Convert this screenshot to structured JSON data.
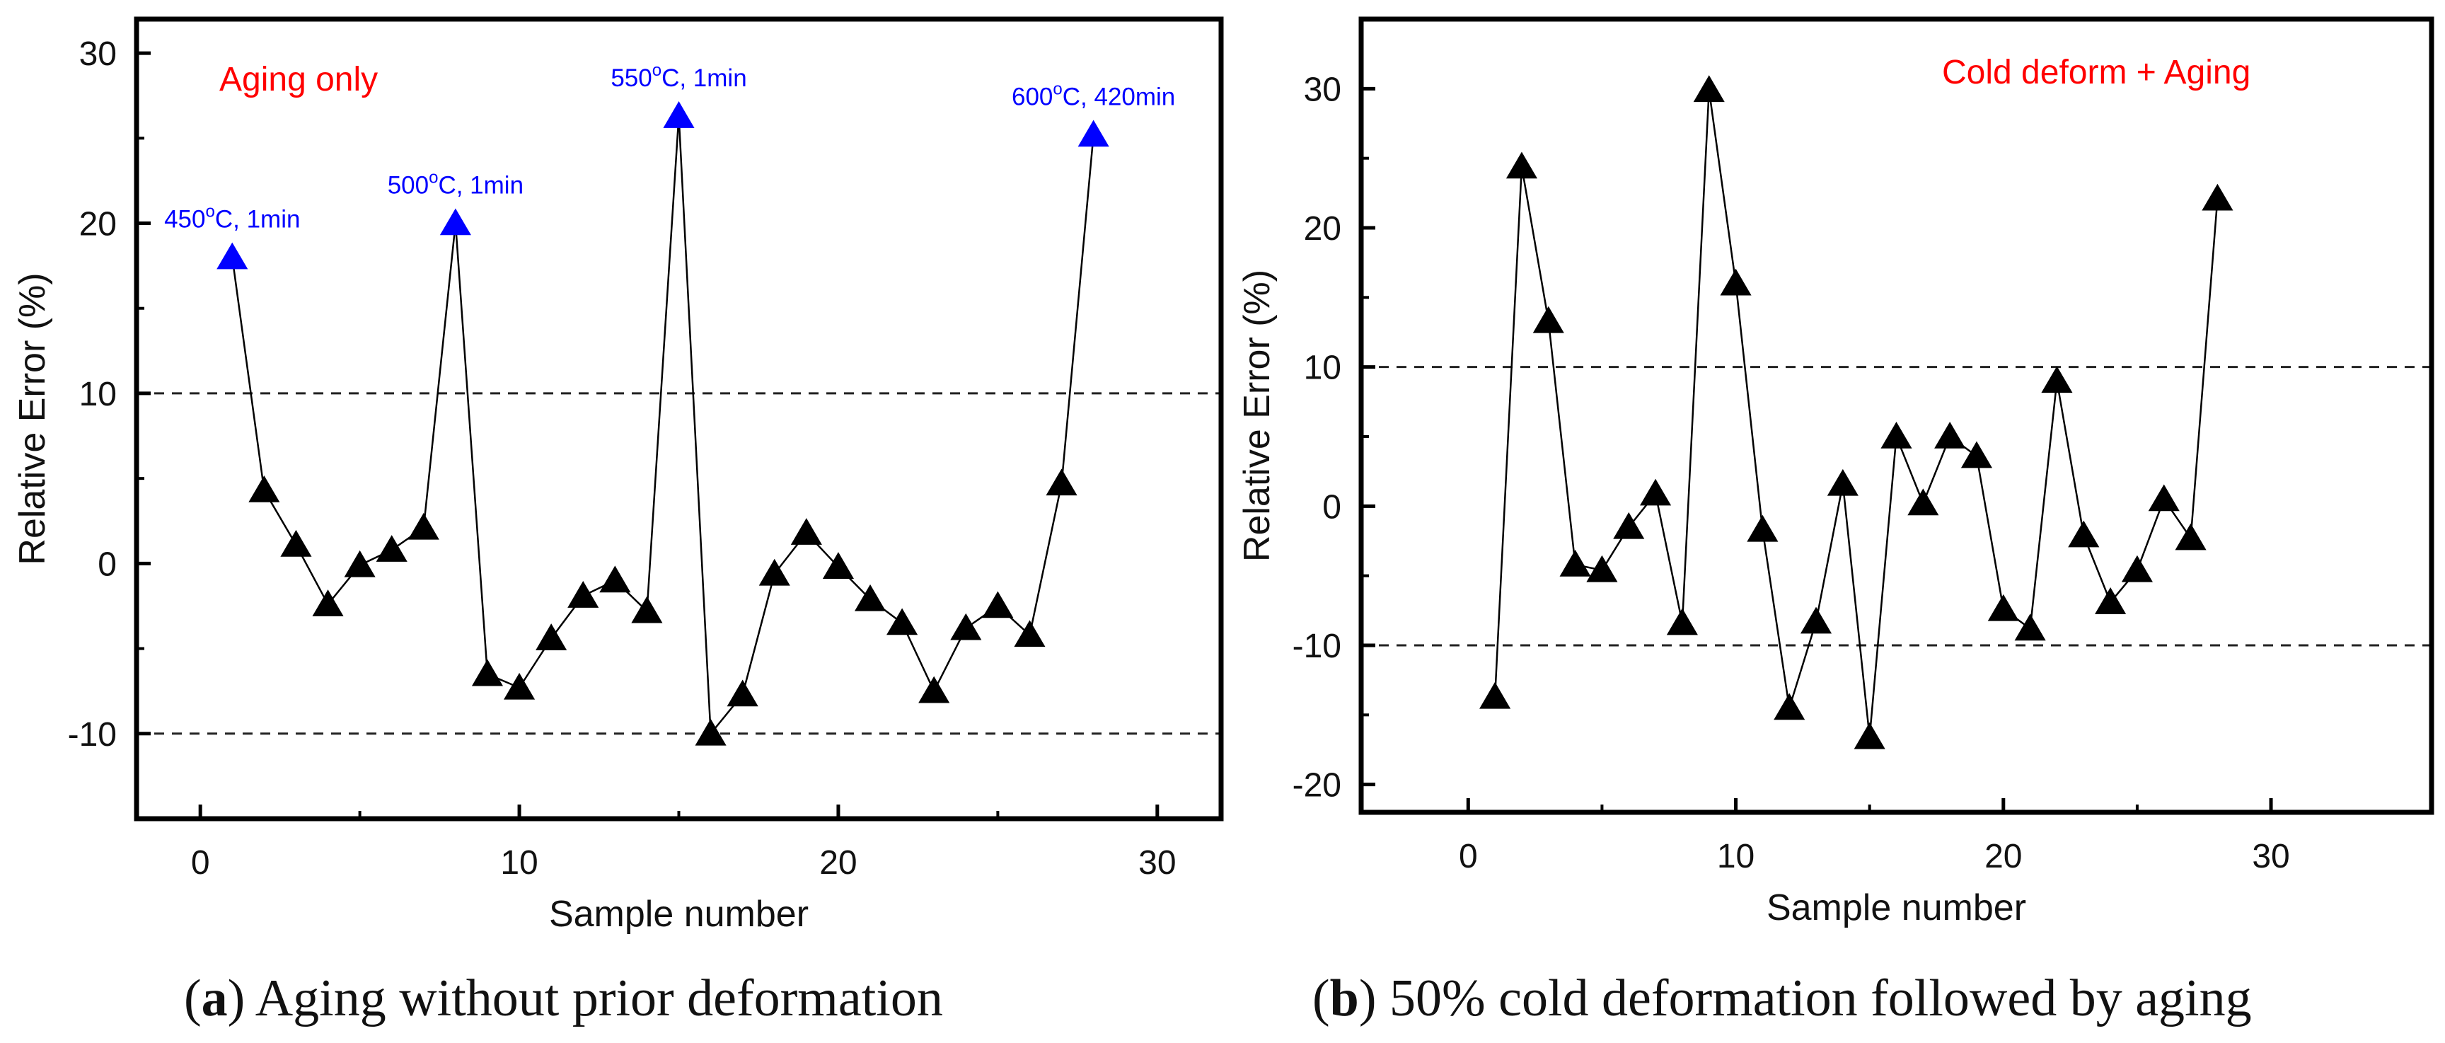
{
  "colors": {
    "highlight": "#0000ff",
    "label_red": "#ff0000",
    "marker": "#000000"
  },
  "chart_data": [
    {
      "type": "scatter",
      "xlabel": "Sample number",
      "ylabel": "Relative Error (%)",
      "xlim": [
        -2,
        32
      ],
      "ylim": [
        -15,
        32
      ],
      "xticks": [
        "0",
        "10",
        "20",
        "30"
      ],
      "yticks": [
        "-10",
        "0",
        "10",
        "20",
        "30"
      ],
      "ref_lines": [
        10,
        -10
      ],
      "inset_label": "Aging only",
      "caption": {
        "letter": "a",
        "text": ") Aging without prior deformation"
      },
      "x": [
        1,
        2,
        3,
        4,
        5,
        6,
        7,
        8,
        9,
        10,
        11,
        12,
        13,
        14,
        15,
        16,
        17,
        18,
        19,
        20,
        21,
        22,
        23,
        24,
        25,
        26,
        27,
        28
      ],
      "y": [
        18,
        4.3,
        1.1,
        -2.4,
        -0.1,
        0.8,
        2.1,
        20,
        -6.5,
        -7.3,
        -4.4,
        -1.9,
        -1,
        -2.8,
        26.3,
        -10,
        -7.7,
        -0.6,
        1.8,
        -0.2,
        -2.1,
        -3.5,
        -7.5,
        -3.8,
        -2.5,
        -4.2,
        4.7,
        25.2
      ],
      "annotations": [
        {
          "index": 0,
          "base": "450",
          "sup": "o",
          "rest": "C, 1min"
        },
        {
          "index": 7,
          "base": "500",
          "sup": "o",
          "rest": "C, 1min"
        },
        {
          "index": 14,
          "base": "550",
          "sup": "o",
          "rest": "C, 1min"
        },
        {
          "index": 27,
          "base": "600",
          "sup": "o",
          "rest": "C, 420min"
        }
      ]
    },
    {
      "type": "scatter",
      "xlabel": "Sample number",
      "ylabel": "Relative Error (%)",
      "xlim": [
        -4,
        36
      ],
      "ylim": [
        -22,
        35
      ],
      "xticks": [
        "0",
        "10",
        "20",
        "30"
      ],
      "yticks": [
        "-20",
        "-10",
        "0",
        "10",
        "20",
        "30"
      ],
      "ref_lines": [
        10,
        -10
      ],
      "inset_label": "Cold deform + Aging",
      "caption": {
        "letter": "b",
        "text": ") 50% cold deformation followed by aging"
      },
      "x": [
        1,
        2,
        3,
        4,
        5,
        6,
        7,
        8,
        9,
        10,
        11,
        12,
        13,
        14,
        15,
        16,
        17,
        18,
        19,
        20,
        21,
        22,
        23,
        24,
        25,
        26,
        27,
        28
      ],
      "y": [
        -13.7,
        24.4,
        13.3,
        -4.2,
        -4.6,
        -1.5,
        0.9,
        -8.4,
        29.9,
        16,
        -1.7,
        -14.5,
        -8.3,
        1.6,
        -16.6,
        5,
        0.2,
        5,
        3.6,
        -7.4,
        -8.8,
        9,
        -2.1,
        -6.9,
        -4.6,
        0.5,
        -2.3,
        22.1
      ]
    }
  ]
}
